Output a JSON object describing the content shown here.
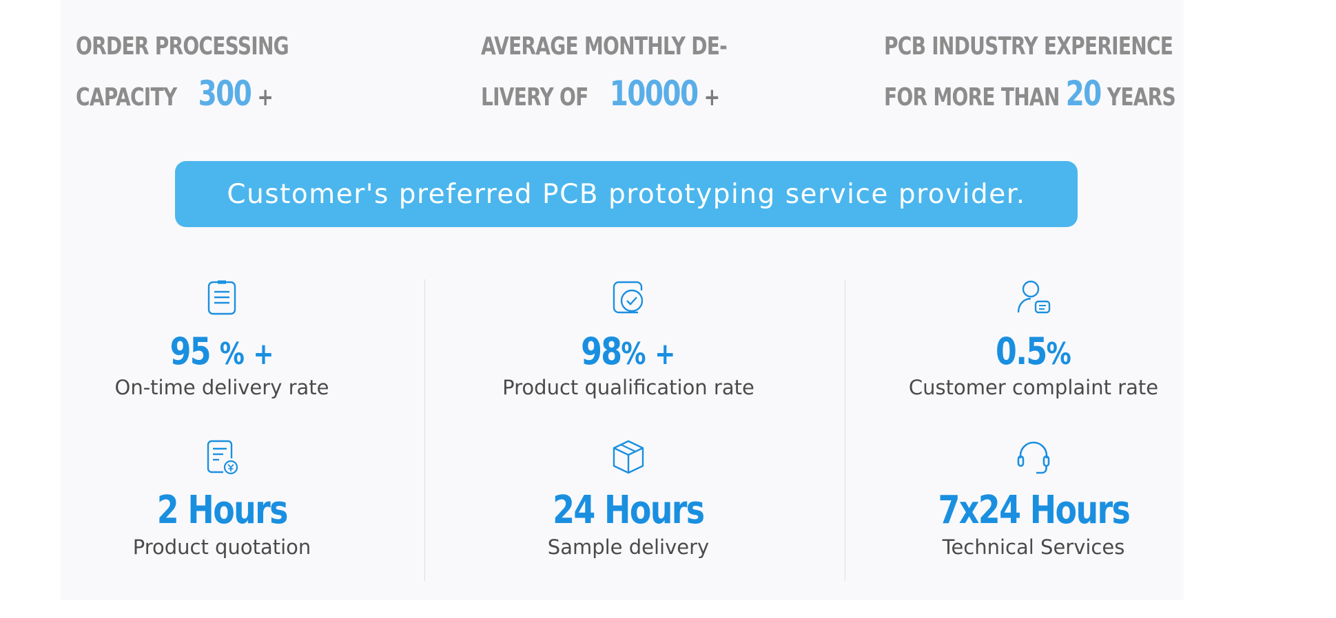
{
  "stats": {
    "order_capacity": {
      "line1": "ORDER PROCESSING",
      "prefix": "CAPACITY",
      "number": "300",
      "suffix": "+"
    },
    "monthly_delivery": {
      "line1": "AVERAGE MONTHLY DE-",
      "prefix": "LIVERY OF",
      "number": "10000",
      "suffix": "+"
    },
    "experience": {
      "line1": "PCB INDUSTRY EXPERIENCE",
      "prefix": "FOR MORE THAN",
      "number": "20",
      "suffix": "YEARS"
    }
  },
  "banner": {
    "text": "Customer's preferred PCB prototyping service provider."
  },
  "metrics": [
    {
      "icon": "clipboard-icon",
      "value": "95",
      "unit": "% +",
      "caption": "On-time delivery rate"
    },
    {
      "icon": "check-badge-icon",
      "value": "98",
      "unit": "% +",
      "caption": "Product qualification rate"
    },
    {
      "icon": "user-message-icon",
      "value": "0.5",
      "unit": "%",
      "caption": "Customer complaint rate"
    },
    {
      "icon": "quote-document-icon",
      "value": "2 Hours",
      "unit": "",
      "caption": "Product quotation"
    },
    {
      "icon": "package-box-icon",
      "value": "24 Hours",
      "unit": "",
      "caption": "Sample delivery"
    },
    {
      "icon": "headset-icon",
      "value": "7x24 Hours",
      "unit": "",
      "caption": "Technical Services"
    }
  ],
  "colors": {
    "accent": "#1a8fe0",
    "accent_light": "#5aaee8",
    "banner": "#4bb6ed",
    "heading_gray": "#8c8c8c",
    "caption": "#4a4a4a"
  }
}
